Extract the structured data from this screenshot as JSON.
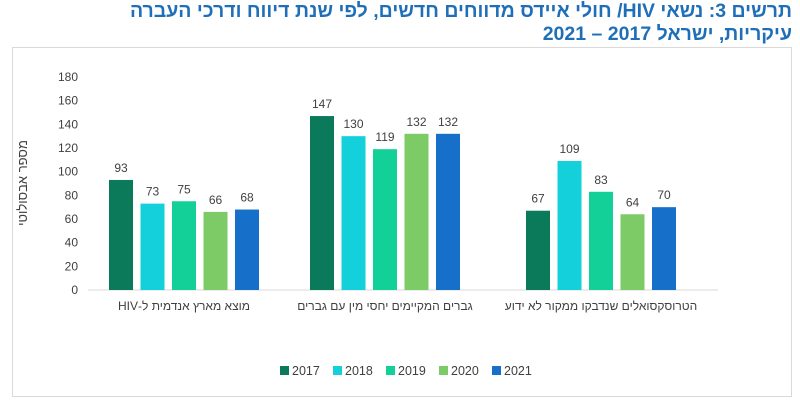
{
  "chart_data": {
    "type": "bar",
    "title_line1": "תרשים 3: נשאי HIV/ חולי איידס מדווחים חדשים, לפי שנת דיווח ודרכי העברה",
    "title_line2": "עיקריות, ישראל 2017 –  2021",
    "ylabel": "מספר אבסולוטי",
    "xlabel": "",
    "ylim": [
      0,
      180
    ],
    "yticks": [
      0,
      20,
      40,
      60,
      80,
      100,
      120,
      140,
      160,
      180
    ],
    "grid": false,
    "legend_position": "bottom",
    "categories": [
      "מוצא מארץ אנדמית ל-HIV",
      "גברים המקיימים יחסי מין עם גברים",
      "הטרוסקסואלים שנדבקו ממקור לא ידוע"
    ],
    "series": [
      {
        "name": "2017",
        "color": "#0b7a5b",
        "values": [
          93,
          147,
          67
        ]
      },
      {
        "name": "2018",
        "color": "#14d0da",
        "values": [
          73,
          130,
          109
        ]
      },
      {
        "name": "2019",
        "color": "#13cf98",
        "values": [
          75,
          119,
          83
        ]
      },
      {
        "name": "2020",
        "color": "#7dcb67",
        "values": [
          66,
          132,
          64
        ]
      },
      {
        "name": "2021",
        "color": "#1670c9",
        "values": [
          68,
          132,
          70
        ]
      }
    ]
  }
}
